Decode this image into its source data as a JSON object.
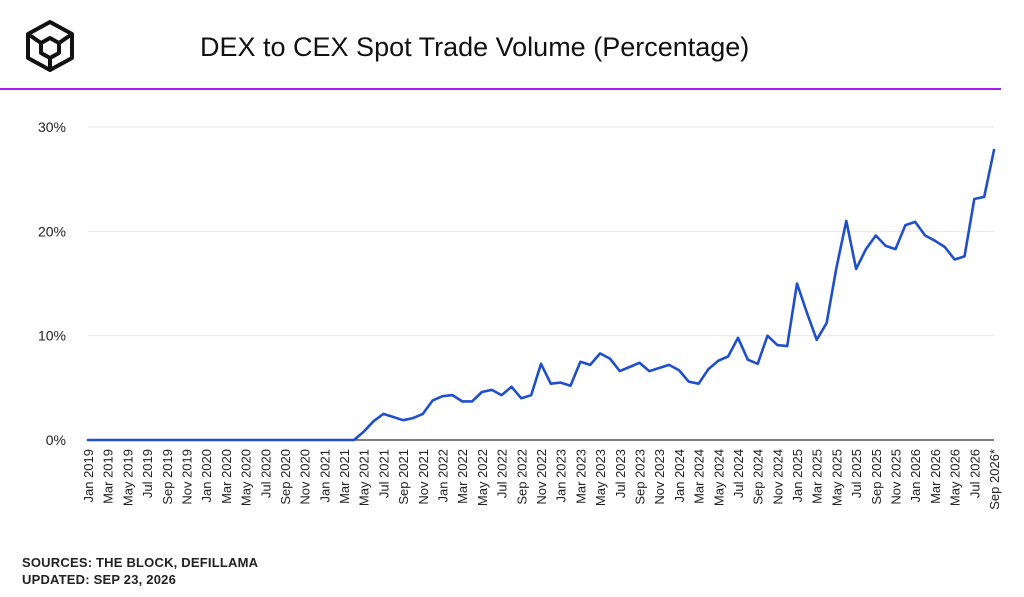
{
  "header": {
    "title": "DEX to CEX Spot Trade Volume (Percentage)",
    "logo_icon": "the-block-cube-icon",
    "accent_color": "#a020f0"
  },
  "footer": {
    "sources": "SOURCES: THE BLOCK, DEFILLAMA",
    "updated": "UPDATED: SEP 23, 2026"
  },
  "chart_data": {
    "type": "line",
    "title": "DEX to CEX Spot Trade Volume (Percentage)",
    "xlabel": "",
    "ylabel": "",
    "ylim": [
      0,
      30
    ],
    "yticks": [
      "0%",
      "10%",
      "20%",
      "30%"
    ],
    "grid": true,
    "line_color": "#1f4fcc",
    "x": [
      "Jan 2019",
      "Feb 2019",
      "Mar 2019",
      "Apr 2019",
      "May 2019",
      "Jun 2019",
      "Jul 2019",
      "Aug 2019",
      "Sep 2019",
      "Oct 2019",
      "Nov 2019",
      "Dec 2019",
      "Jan 2020",
      "Feb 2020",
      "Mar 2020",
      "Apr 2020",
      "May 2020",
      "Jun 2020",
      "Jul 2020",
      "Aug 2020",
      "Sep 2020",
      "Oct 2020",
      "Nov 2020",
      "Dec 2020",
      "Jan 2021",
      "Feb 2021",
      "Mar 2021",
      "Apr 2021",
      "May 2021",
      "Jun 2021",
      "Jul 2021",
      "Aug 2021",
      "Sep 2021",
      "Oct 2021",
      "Nov 2021",
      "Dec 2021",
      "Jan 2022",
      "Feb 2022",
      "Mar 2022",
      "Apr 2022",
      "May 2022",
      "Jun 2022",
      "Jul 2022",
      "Aug 2022",
      "Sep 2022",
      "Oct 2022",
      "Nov 2022",
      "Dec 2022",
      "Jan 2023",
      "Feb 2023",
      "Mar 2023",
      "Apr 2023",
      "May 2023",
      "Jun 2023",
      "Jul 2023",
      "Aug 2023",
      "Sep 2023",
      "Oct 2023",
      "Nov 2023",
      "Dec 2023",
      "Jan 2024",
      "Feb 2024",
      "Mar 2024",
      "Apr 2024",
      "May 2024",
      "Jun 2024",
      "Jul 2024",
      "Aug 2024",
      "Sep 2024",
      "Oct 2024",
      "Nov 2024",
      "Dec 2024",
      "Jan 2025",
      "Feb 2025",
      "Mar 2025",
      "Apr 2025",
      "May 2025",
      "Jun 2025",
      "Jul 2025",
      "Aug 2025",
      "Sep 2025",
      "Oct 2025",
      "Nov 2025",
      "Dec 2025",
      "Jan 2026",
      "Feb 2026",
      "Mar 2026",
      "Apr 2026",
      "May 2026",
      "Jun 2026",
      "Jul 2026",
      "Aug 2026",
      "Sep 2026*"
    ],
    "tick_labels": [
      "Jan 2019",
      "Mar 2019",
      "May 2019",
      "Jul 2019",
      "Sep 2019",
      "Nov 2019",
      "Jan 2020",
      "Mar 2020",
      "May 2020",
      "Jul 2020",
      "Sep 2020",
      "Nov 2020",
      "Jan 2021",
      "Mar 2021",
      "May 2021",
      "Jul 2021",
      "Sep 2021",
      "Nov 2021",
      "Jan 2022",
      "Mar 2022",
      "May 2022",
      "Jul 2022",
      "Sep 2022",
      "Nov 2022",
      "Jan 2023",
      "Mar 2023",
      "May 2023",
      "Jul 2023",
      "Sep 2023",
      "Nov 2023",
      "Jan 2024",
      "Mar 2024",
      "May 2024",
      "Jul 2024",
      "Sep 2024",
      "Nov 2024",
      "Jan 2025",
      "Mar 2025",
      "May 2025",
      "Jul 2025",
      "Sep 2025",
      "Nov 2025",
      "Jan 2026",
      "Mar 2026",
      "May 2026",
      "Jul 2026",
      "Sep 2026*"
    ],
    "values": [
      0,
      0,
      0,
      0,
      0,
      0,
      0,
      0,
      0,
      0,
      0,
      0,
      0,
      0,
      0,
      0,
      0,
      0,
      0,
      0,
      0,
      0,
      0,
      0,
      0,
      0,
      0,
      0,
      0.8,
      1.8,
      2.5,
      2.2,
      1.9,
      2.1,
      2.5,
      3.8,
      4.2,
      4.3,
      3.7,
      3.7,
      4.6,
      4.8,
      4.3,
      5.1,
      4.0,
      4.3,
      7.3,
      5.4,
      5.5,
      5.2,
      7.5,
      7.2,
      8.3,
      7.8,
      6.6,
      7.0,
      7.4,
      6.6,
      6.9,
      7.2,
      6.7,
      5.6,
      5.4,
      6.8,
      7.6,
      8.0,
      9.8,
      7.7,
      7.3,
      10.0,
      9.1,
      9.0,
      15.0,
      12.2,
      9.6,
      11.2,
      16.5,
      21.0,
      16.4,
      18.3,
      19.6,
      18.6,
      18.3,
      20.6,
      20.9,
      19.6,
      19.1,
      18.5,
      17.3,
      17.6,
      23.1,
      23.3,
      27.8
    ]
  }
}
